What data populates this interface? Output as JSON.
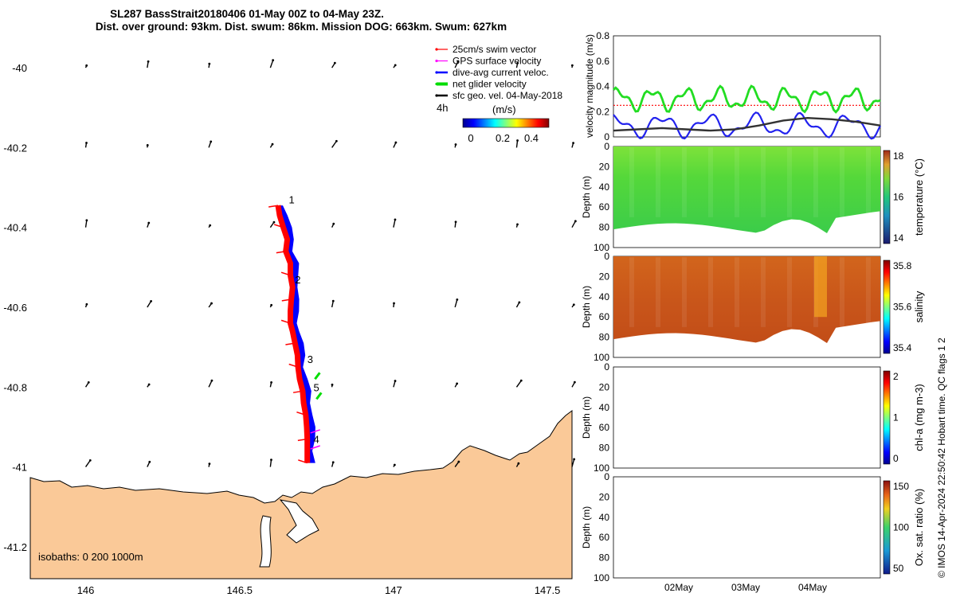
{
  "title_line1": "SL287 BassStrait20180406 01-May 00Z to 04-May 23Z.",
  "title_line2": "Dist. over ground: 93km. Dist. swum: 86km. Mission DOG: 663km. Swum: 627km",
  "credit": "© IMOS 14-Apr-2024 22:50:42 Hobart time. QC flags 1  2",
  "colors": {
    "land": "#fac998",
    "swim": "#ff0000",
    "gps": "#ff00ff",
    "current": "#0000ff",
    "net": "#00dd00",
    "sfc": "#000000"
  },
  "chart_data": [
    {
      "type": "map",
      "xlim": [
        145.82,
        147.58
      ],
      "ylim": [
        -41.28,
        -39.92
      ],
      "xticks": [
        "146",
        "146.5",
        "147",
        "147.5"
      ],
      "yticks": [
        "-40",
        "-40.2",
        "-40.4",
        "-40.6",
        "-40.8",
        "-41",
        "-41.2"
      ],
      "legend": {
        "items": [
          "25cm/s swim vector",
          "GPS surface velocity",
          "dive-avg current veloc.",
          "net glider velocity",
          "sfc geo. vel. 04-May-2018"
        ],
        "interval": "4h",
        "colorbar_label": "(m/s)",
        "colorbar_ticks": [
          "0",
          "0.2",
          "0.4"
        ]
      },
      "isobaths_label": "isobaths: 0   200   1000m",
      "day_markers": [
        "1",
        "2",
        "3",
        "4",
        "5"
      ],
      "track": [
        [
          146.625,
          -40.345
        ],
        [
          146.63,
          -40.37
        ],
        [
          146.642,
          -40.4
        ],
        [
          146.655,
          -40.43
        ],
        [
          146.65,
          -40.46
        ],
        [
          146.665,
          -40.49
        ],
        [
          146.665,
          -40.52
        ],
        [
          146.672,
          -40.55
        ],
        [
          146.668,
          -40.58
        ],
        [
          146.665,
          -40.61
        ],
        [
          146.665,
          -40.64
        ],
        [
          146.672,
          -40.66
        ],
        [
          146.68,
          -40.69
        ],
        [
          146.688,
          -40.72
        ],
        [
          146.69,
          -40.75
        ],
        [
          146.695,
          -40.78
        ],
        [
          146.705,
          -40.81
        ],
        [
          146.708,
          -40.84
        ],
        [
          146.715,
          -40.87
        ],
        [
          146.718,
          -40.9
        ],
        [
          146.72,
          -40.93
        ],
        [
          146.72,
          -40.96
        ],
        [
          146.72,
          -40.99
        ]
      ]
    },
    {
      "type": "line",
      "ylabel": "velocity magnitude (m/s)",
      "ylim": [
        0,
        0.8
      ],
      "yticks": [
        "0",
        "0.2",
        "0.4",
        "0.6",
        "0.8"
      ],
      "series": [
        {
          "color": "green",
          "mean": 0.3,
          "amp": 0.07
        },
        {
          "color": "blue",
          "mean": 0.09,
          "amp": 0.07
        },
        {
          "color": "black",
          "values": [
            0.05,
            0.06,
            0.07,
            0.06,
            0.05,
            0.06,
            0.09,
            0.13,
            0.15,
            0.14,
            0.12,
            0.09
          ]
        }
      ],
      "reference_value": 0.25
    },
    {
      "type": "heatmap",
      "ylabel": "Depth (m)",
      "clabel": "temperature (°C)",
      "yticks": [
        "0",
        "20",
        "40",
        "60",
        "80",
        "100"
      ],
      "cticks": [
        "14",
        "16",
        "18"
      ]
    },
    {
      "type": "heatmap",
      "ylabel": "Depth (m)",
      "clabel": "salinity",
      "yticks": [
        "0",
        "20",
        "40",
        "60",
        "80",
        "100"
      ],
      "cticks": [
        "35.4",
        "35.6",
        "35.8"
      ]
    },
    {
      "type": "heatmap",
      "ylabel": "Depth (m)",
      "clabel": "chl-a (mg m-3)",
      "yticks": [
        "0",
        "20",
        "40",
        "60",
        "80",
        "100"
      ],
      "cticks": [
        "0",
        "1",
        "2"
      ]
    },
    {
      "type": "heatmap",
      "ylabel": "Depth (m)",
      "clabel": "Ox. sat. ratio (%)",
      "yticks": [
        "0",
        "20",
        "40",
        "60",
        "80",
        "100"
      ],
      "cticks": [
        "50",
        "100",
        "150"
      ],
      "xticks": [
        "02May",
        "03May",
        "04May"
      ]
    }
  ]
}
